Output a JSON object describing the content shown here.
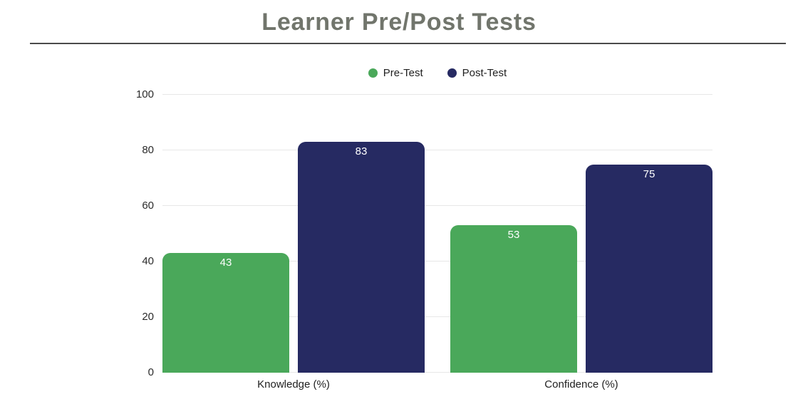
{
  "title": "Learner Pre/Post Tests",
  "chart_data": {
    "type": "bar",
    "title": "Learner Pre/Post Tests",
    "categories": [
      "Knowledge (%)",
      "Confidence (%)"
    ],
    "series": [
      {
        "name": "Pre-Test",
        "color": "#4aa85a",
        "values": [
          43,
          53
        ]
      },
      {
        "name": "Post-Test",
        "color": "#262a62",
        "values": [
          83,
          75
        ]
      }
    ],
    "xlabel": "",
    "ylabel": "",
    "ylim": [
      0,
      100
    ],
    "yticks": [
      0,
      20,
      40,
      60,
      80,
      100
    ],
    "grid": true,
    "legend_position": "top",
    "bar_value_labels": true
  },
  "colors": {
    "title": "#71756c",
    "divider": "#4b4b4b",
    "gridline": "#e7e7e7",
    "axis_text": "#2b2b2b",
    "category_text": "#1f1f1f",
    "bar_label": "#ffffff",
    "background": "#ffffff"
  }
}
